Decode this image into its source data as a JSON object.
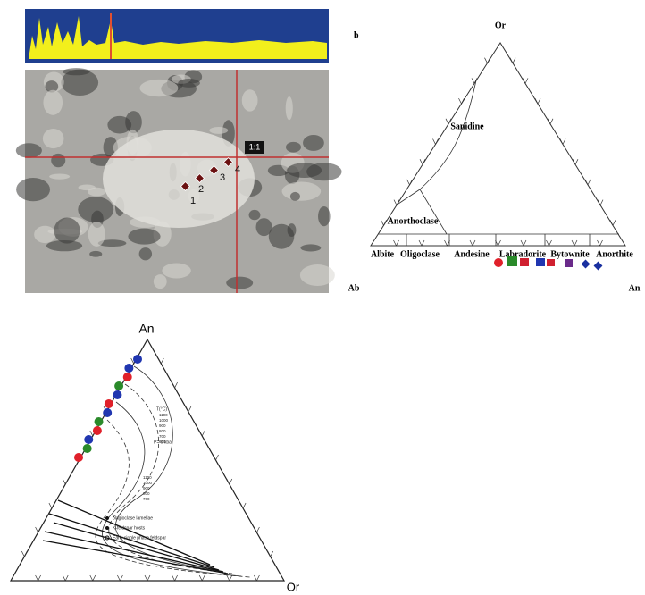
{
  "panel_a": {
    "point_labels": [
      "1",
      "2",
      "3",
      "4"
    ],
    "marker": "1:1"
  },
  "panel_b": {
    "label": "b",
    "apex_top": "Or",
    "apex_left": "Ab",
    "apex_right": "An",
    "fields": [
      "Sanidine",
      "Anorthoclase",
      "Albite",
      "Oligoclase",
      "Andesine",
      "Labradorite",
      "Bytownite",
      "Anorthite"
    ]
  },
  "panel_c": {
    "apex_top": "An",
    "apex_right": "Or",
    "temperature_label": "T(°C)",
    "isotherms_upper": [
      "1100",
      "1000",
      "900",
      "800",
      "700",
      "600"
    ],
    "pressure": "P= 0 kbar",
    "isotherms_lower": [
      "1100",
      "1000",
      "900",
      "800",
      "700"
    ],
    "legend": [
      "plagioclase lamellae",
      "K-feldspar hosts",
      "Early single phase feldspar"
    ]
  }
}
